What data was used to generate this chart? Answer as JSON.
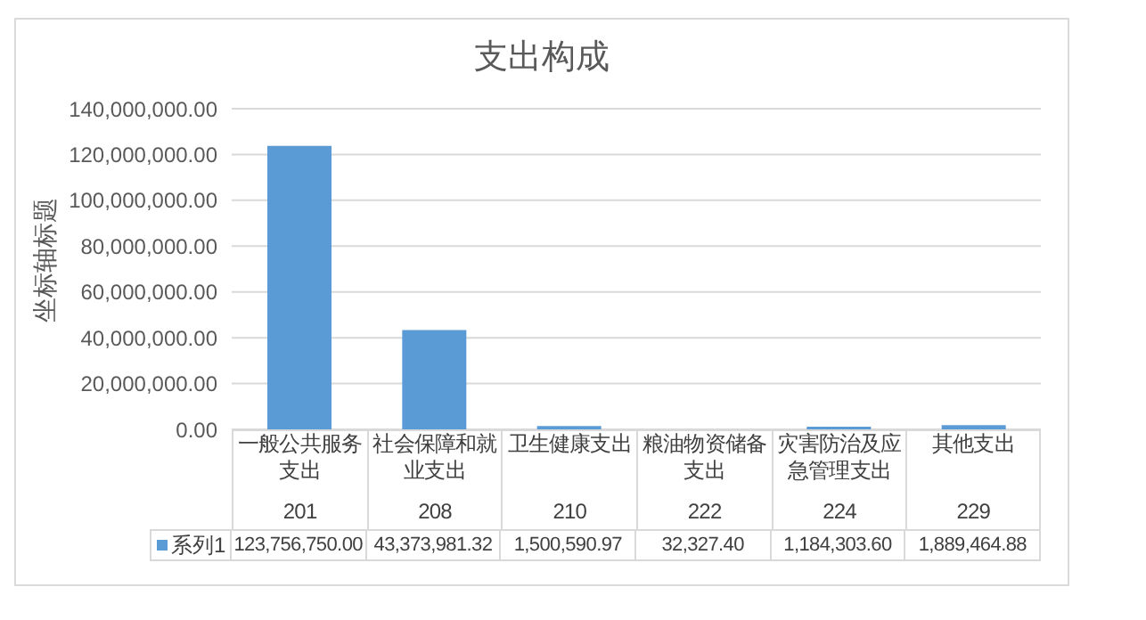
{
  "chart_data": {
    "type": "bar",
    "title": "支出构成",
    "ylabel": "坐标轴标题",
    "categories": [
      "一般公共服务支出\n201",
      "社会保障和就业支出\n208",
      "卫生健康支出\n210",
      "粮油物资储备支出\n222",
      "灾害防治及应急管理支出\n224",
      "其他支出\n229"
    ],
    "series": [
      {
        "name": "系列1",
        "color": "#5b9bd5",
        "values": [
          123756750.0,
          43373981.32,
          1500590.97,
          32327.4,
          1184303.6,
          1889464.88
        ],
        "value_labels": [
          "123,756,750.00",
          "43,373,981.32",
          "1,500,590.97",
          "32,327.40",
          "1,184,303.60",
          "1,889,464.88"
        ]
      }
    ],
    "ylim": [
      0,
      140000000
    ],
    "yticks": [
      {
        "value": 0,
        "label": "0.00"
      },
      {
        "value": 20000000,
        "label": "20,000,000.00"
      },
      {
        "value": 40000000,
        "label": "40,000,000.00"
      },
      {
        "value": 60000000,
        "label": "60,000,000.00"
      },
      {
        "value": 80000000,
        "label": "80,000,000.00"
      },
      {
        "value": 100000000,
        "label": "100,000,000.00"
      },
      {
        "value": 120000000,
        "label": "120,000,000.00"
      },
      {
        "value": 140000000,
        "label": "140,000,000.00"
      }
    ],
    "grid": "y",
    "legend": "bottom left"
  }
}
